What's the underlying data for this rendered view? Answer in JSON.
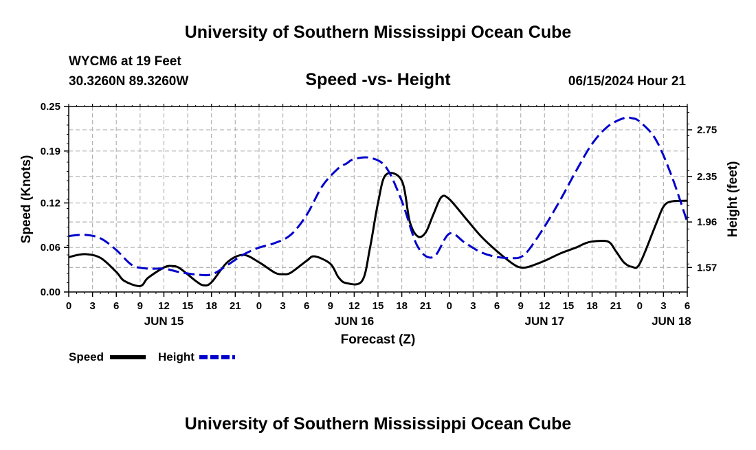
{
  "header": {
    "title": "University of Southern Mississippi Ocean Cube",
    "station": "WYCM6 at 19 Feet",
    "coords": "30.3260N  89.3260W",
    "subtitle": "Speed -vs- Height",
    "datetime": "06/15/2024 Hour 21"
  },
  "footer": {
    "title": "University of Southern Mississippi Ocean Cube"
  },
  "colors": {
    "speed": "#000000",
    "height": "#0000cc",
    "grid": "#b4b4b4"
  },
  "chart_data": {
    "type": "line",
    "xlabel": "Forecast (Z)",
    "ylabel": "Speed (Knots)",
    "y2label": "Height (feet)",
    "xlim": [
      0,
      78
    ],
    "ylim": [
      0,
      0.25
    ],
    "y2lim": [
      1.36,
      2.95
    ],
    "yticks": [
      0.0,
      0.06,
      0.12,
      0.19,
      0.25
    ],
    "ytick_labels": [
      "0.00",
      "0.06",
      "0.12",
      "0.19",
      "0.25"
    ],
    "y2ticks": [
      1.57,
      1.96,
      2.35,
      2.75
    ],
    "y2tick_labels": [
      "1.57",
      "1.96",
      "2.35",
      "2.75"
    ],
    "xticks": [
      0,
      3,
      6,
      9,
      12,
      15,
      18,
      21,
      24,
      27,
      30,
      33,
      36,
      39,
      42,
      45,
      48,
      51,
      54,
      57,
      60,
      63,
      66,
      69,
      72,
      75,
      78
    ],
    "xtick_labels": [
      "0",
      "3",
      "6",
      "9",
      "12",
      "15",
      "18",
      "21",
      "0",
      "3",
      "6",
      "9",
      "12",
      "15",
      "18",
      "21",
      "0",
      "3",
      "6",
      "9",
      "12",
      "15",
      "18",
      "21",
      "0",
      "3",
      "6"
    ],
    "date_labels": [
      {
        "x": 12,
        "label": "JUN 15"
      },
      {
        "x": 36,
        "label": "JUN 16"
      },
      {
        "x": 60,
        "label": "JUN 17"
      },
      {
        "x": 76,
        "label": "JUN 18"
      }
    ],
    "series": [
      {
        "name": "Speed",
        "axis": "left",
        "style": "solid",
        "x": [
          0,
          2,
          4,
          6,
          7,
          9,
          10,
          12,
          13,
          14,
          16,
          17,
          18,
          20,
          22,
          24,
          26,
          27,
          28,
          30,
          31,
          33,
          34,
          35,
          37,
          38,
          39,
          40,
          42,
          43,
          44,
          45,
          46,
          47,
          48,
          50,
          52,
          54,
          56,
          57,
          58,
          60,
          62,
          64,
          65,
          66,
          68,
          69,
          70,
          71,
          72,
          74,
          75,
          76,
          78
        ],
        "y": [
          0.047,
          0.051,
          0.046,
          0.027,
          0.015,
          0.008,
          0.019,
          0.033,
          0.035,
          0.032,
          0.015,
          0.009,
          0.013,
          0.04,
          0.05,
          0.04,
          0.026,
          0.024,
          0.026,
          0.042,
          0.048,
          0.038,
          0.02,
          0.012,
          0.015,
          0.06,
          0.12,
          0.158,
          0.15,
          0.095,
          0.075,
          0.08,
          0.105,
          0.128,
          0.125,
          0.1,
          0.075,
          0.055,
          0.038,
          0.033,
          0.034,
          0.042,
          0.052,
          0.06,
          0.065,
          0.068,
          0.068,
          0.055,
          0.04,
          0.034,
          0.038,
          0.09,
          0.115,
          0.122,
          0.123
        ]
      },
      {
        "name": "Height",
        "axis": "right",
        "style": "dashed",
        "x": [
          0,
          2,
          4,
          6,
          8,
          10,
          12,
          14,
          16,
          18,
          20,
          22,
          24,
          26,
          28,
          30,
          32,
          34,
          35,
          36,
          38,
          40,
          42,
          44,
          46,
          48,
          50,
          52,
          54,
          56,
          57,
          58,
          60,
          62,
          64,
          66,
          68,
          70,
          71,
          72,
          74,
          76,
          78
        ],
        "y": [
          1.84,
          1.85,
          1.82,
          1.72,
          1.59,
          1.56,
          1.56,
          1.53,
          1.51,
          1.51,
          1.59,
          1.68,
          1.74,
          1.78,
          1.85,
          2.02,
          2.27,
          2.42,
          2.46,
          2.5,
          2.51,
          2.43,
          2.14,
          1.75,
          1.66,
          1.86,
          1.78,
          1.7,
          1.66,
          1.65,
          1.66,
          1.72,
          1.92,
          2.15,
          2.4,
          2.63,
          2.78,
          2.85,
          2.85,
          2.82,
          2.67,
          2.36,
          1.96
        ]
      }
    ]
  },
  "legend": {
    "speed_label": "Speed",
    "height_label": "Height"
  }
}
